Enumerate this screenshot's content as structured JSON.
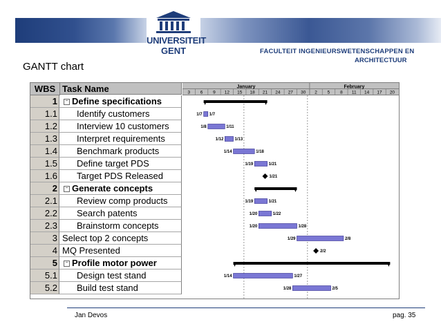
{
  "header": {
    "university_line1": "UNIVERSITEIT",
    "university_line2": "GENT",
    "faculty_line1": "FACULTEIT INGENIEURSWETENSCHAPPEN EN",
    "faculty_line2": "ARCHITECTUUR",
    "brand_color": "#1e3d7a"
  },
  "slide_title": "GANTT chart",
  "table": {
    "col_wbs": "WBS",
    "col_task": "Task Name",
    "rows": [
      {
        "wbs": "1",
        "name": "Define specifications",
        "summary": true
      },
      {
        "wbs": "1.1",
        "name": "Identify customers",
        "summary": false
      },
      {
        "wbs": "1.2",
        "name": "Interview 10 customers",
        "summary": false
      },
      {
        "wbs": "1.3",
        "name": "Interpret requirements",
        "summary": false
      },
      {
        "wbs": "1.4",
        "name": "Benchmark products",
        "summary": false
      },
      {
        "wbs": "1.5",
        "name": "Define target PDS",
        "summary": false
      },
      {
        "wbs": "1.6",
        "name": "Target PDS Released",
        "summary": false
      },
      {
        "wbs": "2",
        "name": "Generate concepts",
        "summary": true
      },
      {
        "wbs": "2.1",
        "name": "Review comp products",
        "summary": false
      },
      {
        "wbs": "2.2",
        "name": "Search patents",
        "summary": false
      },
      {
        "wbs": "2.3",
        "name": "Brainstorm concepts",
        "summary": false
      },
      {
        "wbs": "3",
        "name": "Select top 2 concepts",
        "summary": false,
        "top": true
      },
      {
        "wbs": "4",
        "name": "MQ Presented",
        "summary": false,
        "top": true
      },
      {
        "wbs": "5",
        "name": "Profile motor power",
        "summary": true
      },
      {
        "wbs": "5.1",
        "name": "Design test stand",
        "summary": false
      },
      {
        "wbs": "5.2",
        "name": "Build test stand",
        "summary": false
      }
    ]
  },
  "chart_data": {
    "type": "gantt",
    "months": [
      {
        "label": "January",
        "start_day": 1
      },
      {
        "label": "February",
        "start_day": 32
      }
    ],
    "tick_labels": [
      "3",
      "6",
      "9",
      "12",
      "15",
      "18",
      "21",
      "24",
      "27",
      "30",
      "2",
      "5",
      "8",
      "11",
      "14",
      "17",
      "20"
    ],
    "tick_days": [
      3,
      6,
      9,
      12,
      15,
      18,
      21,
      24,
      27,
      30,
      33,
      36,
      39,
      42,
      45,
      48,
      51
    ],
    "tasks": [
      {
        "row": 0,
        "kind": "summary",
        "start": 7,
        "end": 21
      },
      {
        "row": 1,
        "kind": "task",
        "start": 7,
        "end": 7,
        "start_label": "1/7",
        "end_label": "1/7"
      },
      {
        "row": 2,
        "kind": "task",
        "start": 8,
        "end": 11,
        "start_label": "1/8",
        "end_label": "1/11"
      },
      {
        "row": 3,
        "kind": "task",
        "start": 12,
        "end": 13,
        "start_label": "1/12",
        "end_label": "1/13"
      },
      {
        "row": 4,
        "kind": "task",
        "start": 14,
        "end": 18,
        "start_label": "1/14",
        "end_label": "1/18"
      },
      {
        "row": 5,
        "kind": "task",
        "start": 19,
        "end": 21,
        "start_label": "1/19",
        "end_label": "1/21"
      },
      {
        "row": 6,
        "kind": "milestone",
        "start": 21,
        "end_label": "1/21"
      },
      {
        "row": 7,
        "kind": "summary",
        "start": 19,
        "end": 28
      },
      {
        "row": 8,
        "kind": "task",
        "start": 19,
        "end": 21,
        "start_label": "1/19",
        "end_label": "1/21"
      },
      {
        "row": 9,
        "kind": "task",
        "start": 20,
        "end": 22,
        "start_label": "1/20",
        "end_label": "1/22"
      },
      {
        "row": 10,
        "kind": "task",
        "start": 20,
        "end": 28,
        "start_label": "1/20",
        "end_label": "1/28"
      },
      {
        "row": 11,
        "kind": "task",
        "start": 29,
        "end": 39,
        "start_label": "1/29",
        "end_label": "2/8"
      },
      {
        "row": 12,
        "kind": "milestone",
        "start": 33,
        "end_label": "2/2"
      },
      {
        "row": 13,
        "kind": "summary",
        "start": 14,
        "end": 50
      },
      {
        "row": 14,
        "kind": "task",
        "start": 14,
        "end": 27,
        "start_label": "1/14",
        "end_label": "1/27"
      },
      {
        "row": 15,
        "kind": "task",
        "start": 28,
        "end": 36,
        "start_label": "1/28",
        "end_label": "2/5"
      }
    ],
    "bar_color": "#7a77d4",
    "summary_color": "#000000",
    "dashed_lines_days": [
      16,
      31
    ]
  },
  "footer": {
    "author": "Jan Devos",
    "page": "pag. 35"
  }
}
